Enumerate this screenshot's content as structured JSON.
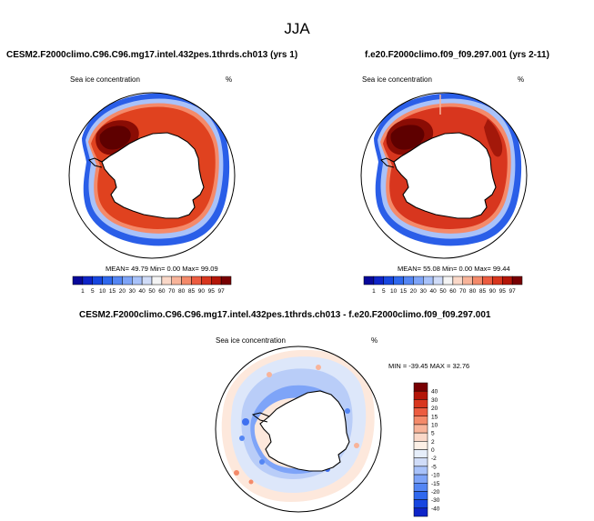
{
  "title": "JJA",
  "panels": {
    "left": {
      "case": "CESM2.F2000climo.C96.C96.mg17.intel.432pes.1thrds.ch013 (yrs 1)",
      "variable": "Sea ice concentration",
      "units": "%",
      "stats": "MEAN=  49.79  Min=   0.00  Max=  99.09"
    },
    "right": {
      "case": "f.e20.F2000climo.f09_f09.297.001 (yrs 2-11)",
      "variable": "Sea ice concentration",
      "units": "%",
      "stats": "MEAN=  55.08  Min=   0.00  Max=  99.44"
    },
    "diff": {
      "case": "CESM2.F2000climo.C96.C96.mg17.intel.432pes.1thrds.ch013 - f.e20.F2000climo.f09_f09.297.001",
      "variable": "Sea ice concentration",
      "units": "%",
      "stats": "MIN = -39.45 MAX =  32.76"
    }
  },
  "chart_data": [
    {
      "type": "heatmap",
      "title": "CESM2.F2000climo.C96.C96.mg17.intel.432pes.1thrds.ch013 (yrs 1)",
      "subtitle": "Sea ice concentration (%)",
      "projection": "south polar stereographic",
      "mean": 49.79,
      "min": 0.0,
      "max": 99.09,
      "colorbar": {
        "orientation": "horizontal",
        "levels": [
          1,
          5,
          10,
          15,
          20,
          30,
          40,
          50,
          60,
          70,
          80,
          85,
          90,
          95,
          97
        ],
        "colors": [
          "#08089a",
          "#0e24c8",
          "#1746e0",
          "#2f68ee",
          "#5486f4",
          "#7ea4f8",
          "#a8c2fa",
          "#d0dcf8",
          "#f4f4f4",
          "#fad8c8",
          "#f8b49a",
          "#f48a6a",
          "#ec5c40",
          "#d8361e",
          "#b41608",
          "#780002"
        ]
      }
    },
    {
      "type": "heatmap",
      "title": "f.e20.F2000climo.f09_f09.297.001 (yrs 2-11)",
      "subtitle": "Sea ice concentration (%)",
      "projection": "south polar stereographic",
      "mean": 55.08,
      "min": 0.0,
      "max": 99.44,
      "colorbar": {
        "orientation": "horizontal",
        "levels": [
          1,
          5,
          10,
          15,
          20,
          30,
          40,
          50,
          60,
          70,
          80,
          85,
          90,
          95,
          97
        ],
        "colors": [
          "#08089a",
          "#0e24c8",
          "#1746e0",
          "#2f68ee",
          "#5486f4",
          "#7ea4f8",
          "#a8c2fa",
          "#d0dcf8",
          "#f4f4f4",
          "#fad8c8",
          "#f8b49a",
          "#f48a6a",
          "#ec5c40",
          "#d8361e",
          "#b41608",
          "#780002"
        ]
      }
    },
    {
      "type": "heatmap",
      "title": "CESM2.F2000climo.C96.C96.mg17.intel.432pes.1thrds.ch013 - f.e20.F2000climo.f09_f09.297.001",
      "subtitle": "Sea ice concentration (%)",
      "projection": "south polar stereographic",
      "min": -39.45,
      "max": 32.76,
      "colorbar": {
        "orientation": "vertical",
        "levels": [
          40,
          30,
          20,
          15,
          10,
          5,
          2,
          0,
          -2,
          -5,
          -10,
          -15,
          -20,
          -30,
          -40
        ],
        "colors": [
          "#780002",
          "#b41608",
          "#d8361e",
          "#ec5c40",
          "#f48a6a",
          "#f8b49a",
          "#fad8c8",
          "#fdf0e6",
          "#e6eefa",
          "#d0dcf8",
          "#a8c2fa",
          "#7ea4f8",
          "#5486f4",
          "#2f68ee",
          "#1746e0",
          "#0e24c8"
        ]
      }
    }
  ]
}
